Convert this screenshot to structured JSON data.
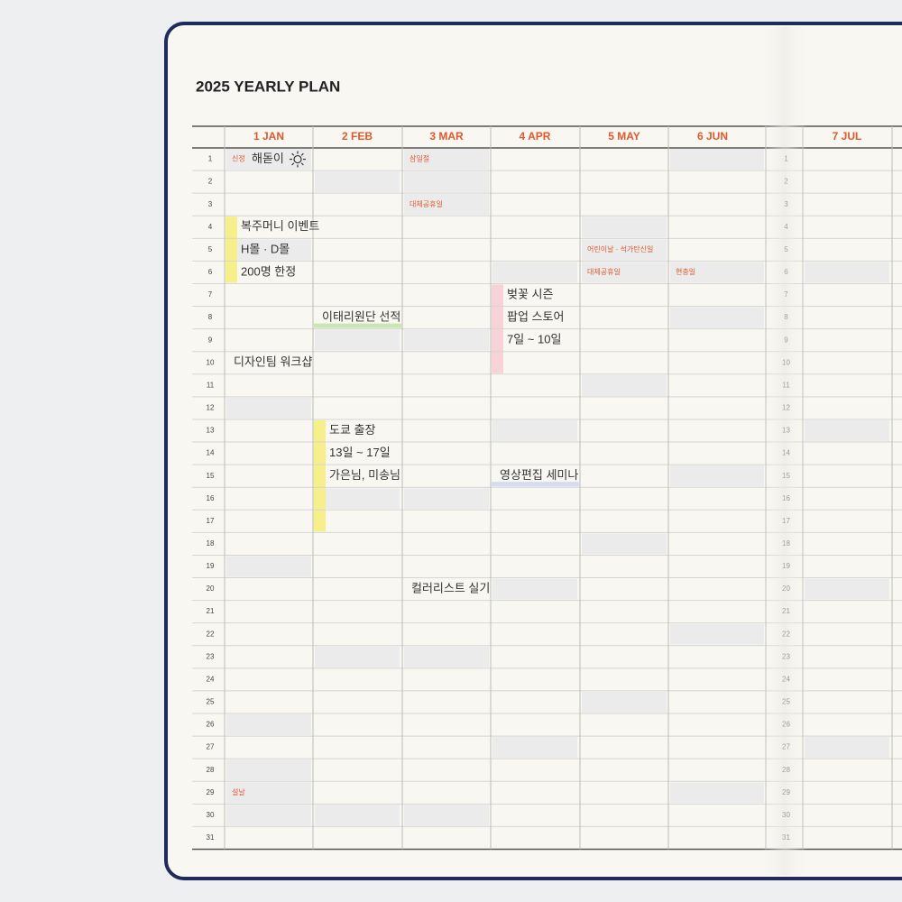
{
  "title": "2025 YEARLY PLAN",
  "days": [
    1,
    2,
    3,
    4,
    5,
    6,
    7,
    8,
    9,
    10,
    11,
    12,
    13,
    14,
    15,
    16,
    17,
    18,
    19,
    20,
    21,
    22,
    23,
    24,
    25,
    26,
    27,
    28,
    29,
    30,
    31
  ],
  "months": [
    {
      "label": "1 JAN",
      "holidays": {
        "1": "신정",
        "29": "설날"
      },
      "notes": {
        "1": "해돋이",
        "4": "복주머니 이벤트",
        "5": "H몰 · D몰",
        "6": "200명 한정",
        "10": "디자인팀 워크샵"
      }
    },
    {
      "label": "2 FEB",
      "holidays": {},
      "notes": {
        "8": "이태리원단 선적",
        "13": "도쿄 출장",
        "14": "13일 ~ 17일",
        "15": "가은님, 미송님"
      }
    },
    {
      "label": "3 MAR",
      "holidays": {
        "1": "삼일절",
        "3": "대체공휴일"
      },
      "notes": {
        "20": "컬러리스트 실기"
      }
    },
    {
      "label": "4 APR",
      "holidays": {},
      "notes": {
        "7": "벚꽃 시즌",
        "8": "팝업 스토어",
        "9": "7일 ~ 10일",
        "15": "영상편집 세미나"
      }
    },
    {
      "label": "5 MAY",
      "holidays": {
        "5": "어린이날 · 석가탄신일",
        "6": "대체공휴일"
      },
      "notes": {}
    },
    {
      "label": "6 JUN",
      "holidays": {
        "6": "현충일"
      },
      "notes": {}
    },
    {
      "label": "7 JUL",
      "holidays": {},
      "notes": {}
    }
  ]
}
